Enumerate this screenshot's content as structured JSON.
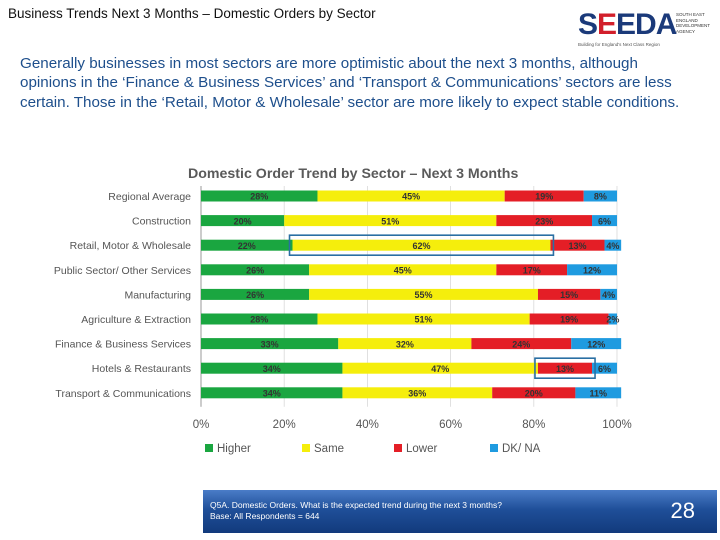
{
  "page": {
    "title": "Business Trends Next 3 Months – Domestic Orders by Sector",
    "intro": "Generally businesses in most sectors are more optimistic about the next 3 months, although opinions in the ‘Finance & Business Services’ and ‘Transport & Communications’ sectors are less certain. Those in the ‘Retail, Motor & Wholesale’ sector are more likely to expect stable conditions.",
    "page_number": "28"
  },
  "logo": {
    "word_s": "S",
    "word_e1": "E",
    "word_e2": "E",
    "word_da": "DA",
    "tagline": "Building for England's Next Class Region",
    "side_text": "SOUTH EAST ENGLAND DEVELOPMENT AGENCY"
  },
  "footer": {
    "question": "Q5A. Domestic Orders. What is the expected trend during the next 3 months?",
    "base": "Base: All Respondents = 644"
  },
  "colors": {
    "higher": "#1aa640",
    "same": "#f5ee0c",
    "lower": "#e41e26",
    "dk_na": "#1f9be0",
    "title": "#1e4f8c",
    "highlight": "#2a6fa3"
  },
  "chart_data": {
    "type": "bar",
    "orientation": "horizontal",
    "stacked": true,
    "title": "Domestic Order Trend by Sector – Next 3 Months",
    "xlabel": "",
    "ylabel": "",
    "xlim": [
      0,
      100
    ],
    "x_ticks": [
      "0%",
      "20%",
      "40%",
      "60%",
      "80%",
      "100%"
    ],
    "categories": [
      "Regional Average",
      "Construction",
      "Retail, Motor & Wholesale",
      "Public Sector/ Other Services",
      "Manufacturing",
      "Agriculture & Extraction",
      "Finance & Business Services",
      "Hotels & Restaurants",
      "Transport & Communications"
    ],
    "series": [
      {
        "name": "Higher",
        "values": [
          28,
          20,
          22,
          26,
          26,
          28,
          33,
          34,
          34
        ]
      },
      {
        "name": "Same",
        "values": [
          45,
          51,
          62,
          45,
          55,
          51,
          32,
          47,
          36
        ]
      },
      {
        "name": "Lower",
        "values": [
          19,
          23,
          13,
          17,
          15,
          19,
          24,
          13,
          20
        ]
      },
      {
        "name": "DK/ NA",
        "values": [
          8,
          6,
          4,
          12,
          4,
          2,
          12,
          6,
          11
        ]
      }
    ],
    "legend_position": "bottom",
    "highlights": [
      {
        "category": "Retail, Motor & Wholesale",
        "series": "Same"
      },
      {
        "category": "Hotels & Restaurants",
        "series": "Lower"
      }
    ]
  }
}
